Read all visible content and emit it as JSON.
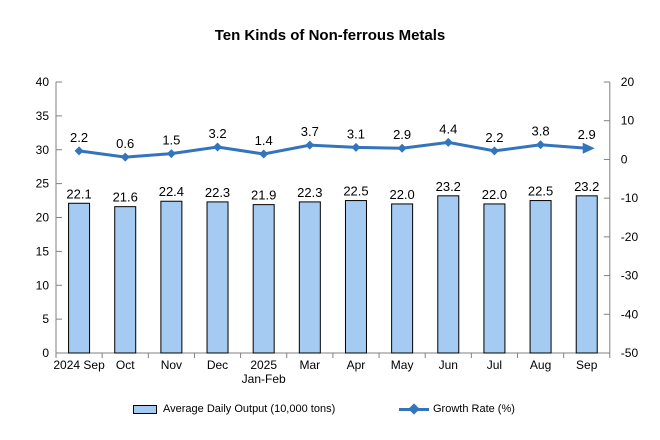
{
  "chart_data": {
    "type": "bar+line",
    "title": "Ten Kinds of Non-ferrous Metals",
    "categories": [
      "2024 Sep",
      "Oct",
      "Nov",
      "Dec",
      "2025\nJan-Feb",
      "Mar",
      "Apr",
      "May",
      "Jun",
      "Jul",
      "Aug",
      "Sep"
    ],
    "series": [
      {
        "name": "Average Daily Output (10,000 tons)",
        "type": "bar",
        "axis": "left",
        "values": [
          22.1,
          21.6,
          22.4,
          22.3,
          21.9,
          22.3,
          22.5,
          22.0,
          23.2,
          22.0,
          22.5,
          23.2
        ],
        "labels": [
          "22.1",
          "21.6",
          "22.4",
          "22.3",
          "21.9",
          "22.3",
          "22.5",
          "22.0",
          "23.2",
          "22.0",
          "22.5",
          "23.2"
        ]
      },
      {
        "name": "Growth Rate (%)",
        "type": "line",
        "axis": "right",
        "marker": "diamond",
        "end_cap": "arrow",
        "values": [
          2.2,
          0.6,
          1.5,
          3.2,
          1.4,
          3.7,
          3.1,
          2.9,
          4.4,
          2.2,
          3.8,
          2.9
        ],
        "labels": [
          "2.2",
          "0.6",
          "1.5",
          "3.2",
          "1.4",
          "3.7",
          "3.1",
          "2.9",
          "4.4",
          "2.2",
          "3.8",
          "2.9"
        ]
      }
    ],
    "left_axis": {
      "min": 0,
      "max": 40,
      "ticks": [
        "40",
        "35",
        "30",
        "25",
        "20",
        "15",
        "10",
        "5",
        "0"
      ],
      "tick_values": [
        40,
        35,
        30,
        25,
        20,
        15,
        10,
        5,
        0
      ]
    },
    "right_axis": {
      "min": -50,
      "max": 20,
      "ticks": [
        "20",
        "10",
        "0",
        "-10",
        "-20",
        "-30",
        "-40",
        "-50"
      ],
      "tick_values": [
        20,
        10,
        0,
        -10,
        -20,
        -30,
        -40,
        -50
      ]
    },
    "grid": false,
    "legend_position": "bottom"
  },
  "legend": {
    "bar_label": "Average Daily Output (10,000 tons)",
    "line_label": "Growth Rate (%)"
  },
  "colors": {
    "bar_fill": "#A5CBF2",
    "bar_border": "#000000",
    "line": "#3474BC",
    "axis": "#808080",
    "text": "#000000",
    "background": "#FFFFFF"
  }
}
